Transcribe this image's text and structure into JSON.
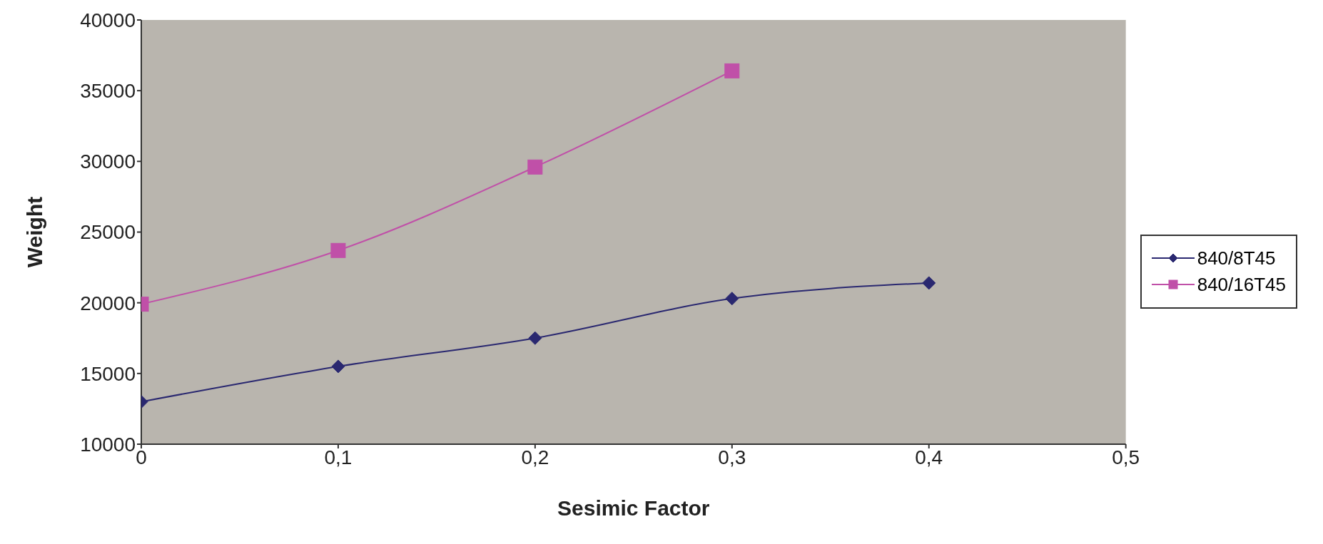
{
  "chart_data": {
    "type": "line",
    "xlabel": "Sesimic Factor",
    "ylabel": "Weight",
    "xlim": [
      0,
      0.5
    ],
    "xticks": [
      {
        "value": 0,
        "label": "0"
      },
      {
        "value": 0.1,
        "label": "0,1"
      },
      {
        "value": 0.2,
        "label": "0,2"
      },
      {
        "value": 0.3,
        "label": "0,3"
      },
      {
        "value": 0.4,
        "label": "0,4"
      },
      {
        "value": 0.5,
        "label": "0,5"
      }
    ],
    "ylim": [
      10000,
      40000
    ],
    "yticks": [
      10000,
      15000,
      20000,
      25000,
      30000,
      35000,
      40000
    ],
    "grid": false,
    "legend": "right",
    "series": [
      {
        "name": "840/8T45",
        "color": "#2a2870",
        "marker": "diamond",
        "x": [
          0,
          0.1,
          0.2,
          0.3,
          0.4
        ],
        "values": [
          13000,
          15500,
          17500,
          20300,
          21400
        ]
      },
      {
        "name": "840/16T45",
        "color": "#c050a8",
        "marker": "square",
        "x": [
          0,
          0.1,
          0.2,
          0.3
        ],
        "values": [
          19900,
          23700,
          29600,
          36400
        ]
      }
    ]
  }
}
